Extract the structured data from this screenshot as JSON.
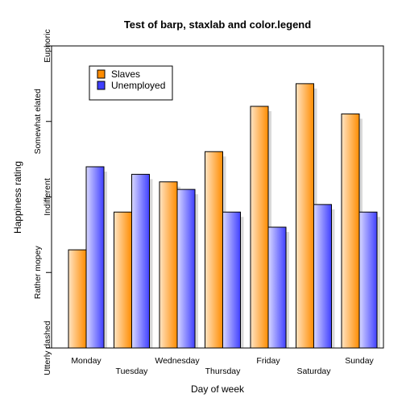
{
  "chart_data": {
    "type": "bar",
    "title": "Test of barp, staxlab and color.legend",
    "xlabel": "Day of week",
    "ylabel": "Happiness rating",
    "categories": [
      "Monday",
      "Tuesday",
      "Wednesday",
      "Thursday",
      "Friday",
      "Saturday",
      "Sunday"
    ],
    "series": [
      {
        "name": "Slaves",
        "values": [
          1.3,
          1.8,
          2.2,
          2.6,
          3.2,
          3.5,
          3.1
        ],
        "color": "#ff8c00"
      },
      {
        "name": "Unemployed",
        "values": [
          2.4,
          2.3,
          2.1,
          1.8,
          1.6,
          1.9,
          1.8
        ],
        "color": "#4040ff"
      }
    ],
    "ylim": [
      0,
      4
    ],
    "yticks": [
      {
        "value": 0,
        "label": "Utterly dashed"
      },
      {
        "value": 1,
        "label": "Rather mopey"
      },
      {
        "value": 2,
        "label": "Indifferent"
      },
      {
        "value": 3,
        "label": "Somewhat elated"
      },
      {
        "value": 4,
        "label": "Euphoric"
      }
    ],
    "legend": {
      "position": "top-left"
    },
    "grid": false
  }
}
